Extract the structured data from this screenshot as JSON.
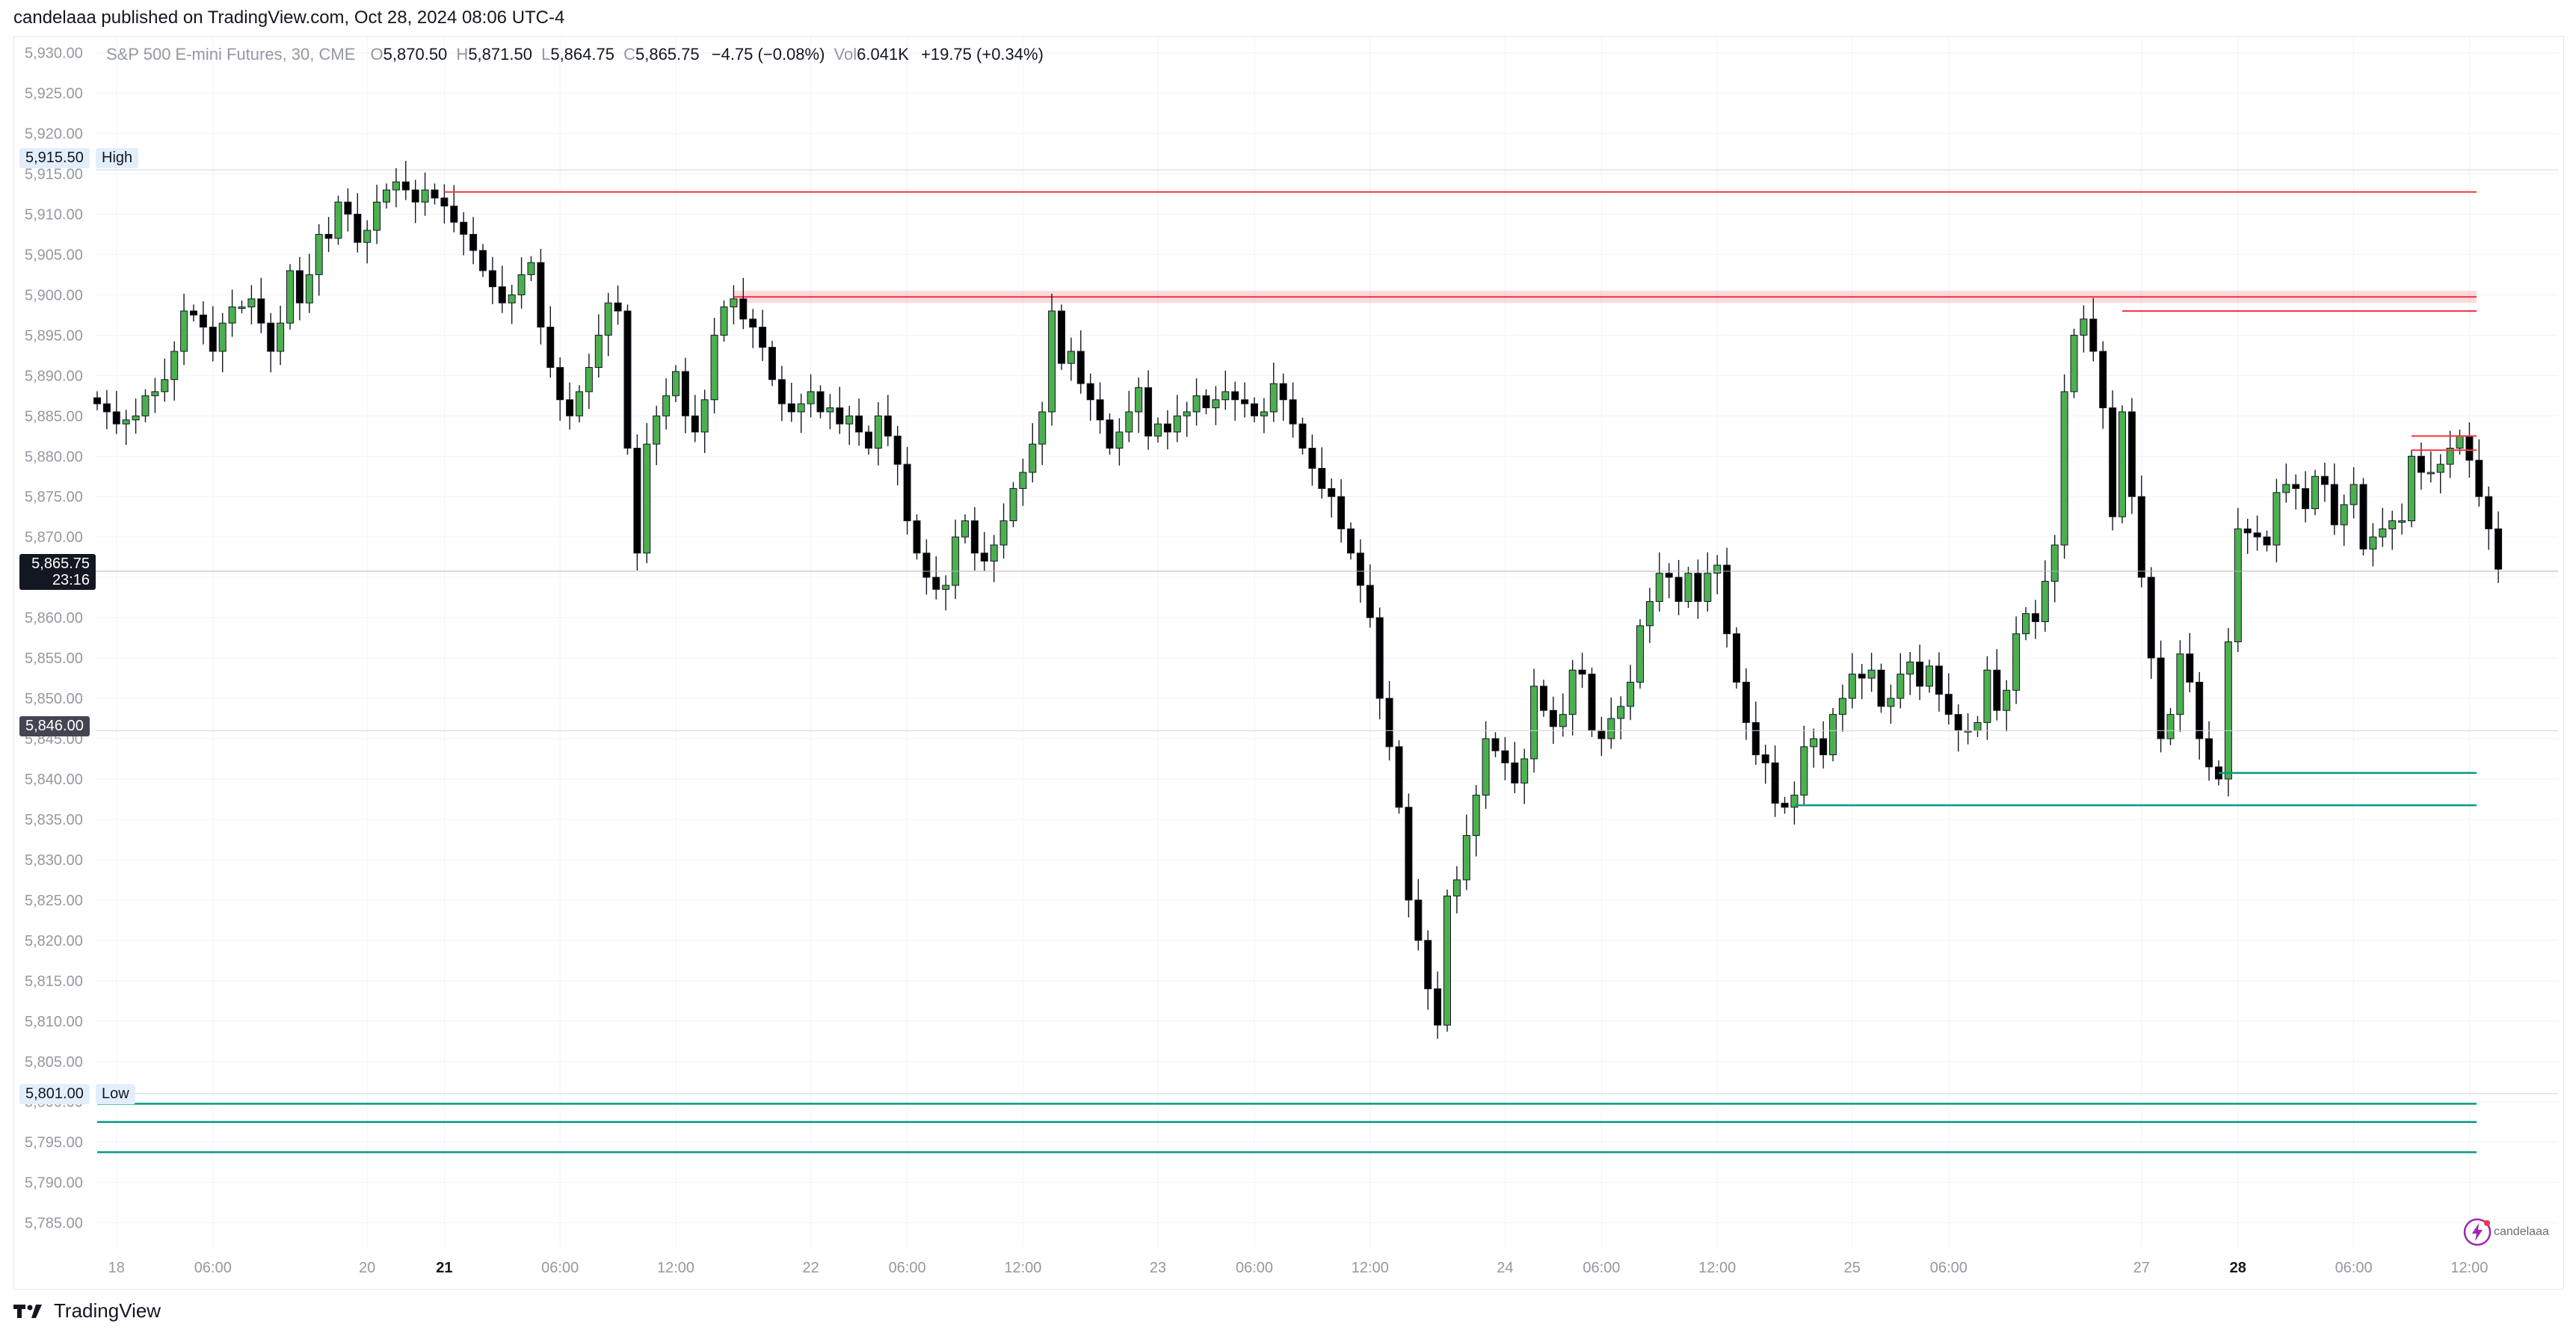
{
  "header": {
    "publish_line": "candelaaa published on TradingView.com, Oct 28, 2024 08:06 UTC-4"
  },
  "legend": {
    "symbol": "S&P 500 E-mini Futures, 30, CME",
    "open_key": "O",
    "open": "5,870.50",
    "high_key": "H",
    "high": "5,871.50",
    "low_key": "L",
    "low": "5,864.75",
    "close_key": "C",
    "close": "5,865.75",
    "change": "−4.75 (−0.08%)",
    "vol_key": "Vol",
    "volume": "6.041K",
    "vol_change": "+19.75 (+0.34%)"
  },
  "tags": {
    "high_price": "5,915.50",
    "high_label": "High",
    "low_price": "5,801.00",
    "low_label": "Low",
    "last_price": "5,865.75",
    "countdown": "23:16",
    "level_price": "5,846.00"
  },
  "footer": {
    "brand": "TradingView"
  },
  "watermark": {
    "text": "candelaaa"
  },
  "colors": {
    "up": "#4caf50",
    "down": "#000000",
    "resistance": "#f23645",
    "support": "#089981",
    "grid": "#f0f3fa"
  },
  "chart_data": {
    "type": "candlestick",
    "timeframe": "30",
    "ylim": [
      5782,
      5932
    ],
    "y_ticks": [
      "5,785.00",
      "5,790.00",
      "5,795.00",
      "5,800.00",
      "5,805.00",
      "5,810.00",
      "5,815.00",
      "5,820.00",
      "5,825.00",
      "5,830.00",
      "5,835.00",
      "5,840.00",
      "5,845.00",
      "5,850.00",
      "5,855.00",
      "5,860.00",
      "5,865.00",
      "5,870.00",
      "5,875.00",
      "5,880.00",
      "5,885.00",
      "5,890.00",
      "5,895.00",
      "5,900.00",
      "5,905.00",
      "5,910.00",
      "5,915.00",
      "5,920.00",
      "5,925.00",
      "5,930.00"
    ],
    "y_tick_values": [
      5785,
      5790,
      5795,
      5800,
      5805,
      5810,
      5815,
      5820,
      5825,
      5830,
      5835,
      5840,
      5845,
      5850,
      5855,
      5860,
      5865,
      5870,
      5875,
      5880,
      5885,
      5890,
      5895,
      5900,
      5905,
      5910,
      5915,
      5920,
      5925,
      5930
    ],
    "x_ticks": [
      {
        "label": "18",
        "bar": 2,
        "bold": false
      },
      {
        "label": "06:00",
        "bar": 12,
        "bold": false
      },
      {
        "label": "20",
        "bar": 28,
        "bold": false
      },
      {
        "label": "21",
        "bar": 36,
        "bold": true
      },
      {
        "label": "06:00",
        "bar": 48,
        "bold": false
      },
      {
        "label": "12:00",
        "bar": 60,
        "bold": false
      },
      {
        "label": "22",
        "bar": 74,
        "bold": false
      },
      {
        "label": "06:00",
        "bar": 84,
        "bold": false
      },
      {
        "label": "12:00",
        "bar": 96,
        "bold": false
      },
      {
        "label": "23",
        "bar": 110,
        "bold": false
      },
      {
        "label": "06:00",
        "bar": 120,
        "bold": false
      },
      {
        "label": "12:00",
        "bar": 132,
        "bold": false
      },
      {
        "label": "24",
        "bar": 146,
        "bold": false
      },
      {
        "label": "06:00",
        "bar": 156,
        "bold": false
      },
      {
        "label": "12:00",
        "bar": 168,
        "bold": false
      },
      {
        "label": "25",
        "bar": 182,
        "bold": false
      },
      {
        "label": "06:00",
        "bar": 192,
        "bold": false
      },
      {
        "label": "27",
        "bar": 212,
        "bold": false
      },
      {
        "label": "28",
        "bar": 222,
        "bold": true
      },
      {
        "label": "06:00",
        "bar": 234,
        "bold": false
      },
      {
        "label": "12:00",
        "bar": 246,
        "bold": false
      }
    ],
    "closes": [
      5886.5,
      5885.5,
      5884.0,
      5884.5,
      5885.0,
      5887.5,
      5888.0,
      5889.5,
      5893.0,
      5898.0,
      5897.5,
      5896.0,
      5893.0,
      5896.5,
      5898.5,
      5898.5,
      5899.5,
      5896.5,
      5893.0,
      5896.5,
      5903.0,
      5899.0,
      5902.5,
      5907.5,
      5907.0,
      5911.5,
      5910.0,
      5906.5,
      5908.0,
      5911.5,
      5913.0,
      5914.0,
      5913.0,
      5911.5,
      5913.0,
      5912.0,
      5911.0,
      5909.0,
      5907.5,
      5905.5,
      5903.0,
      5901.0,
      5899.0,
      5900.0,
      5902.5,
      5904.0,
      5896.0,
      5891.0,
      5887.0,
      5885.0,
      5888.0,
      5891.0,
      5895.0,
      5899.0,
      5898.0,
      5881.0,
      5868.0,
      5881.5,
      5885.0,
      5887.5,
      5890.5,
      5885.0,
      5883.0,
      5887.0,
      5895.0,
      5898.5,
      5899.5,
      5897.0,
      5896.0,
      5893.5,
      5889.5,
      5886.5,
      5885.5,
      5886.5,
      5888.0,
      5885.5,
      5886.0,
      5884.0,
      5885.0,
      5883.0,
      5881.0,
      5885.0,
      5882.5,
      5879.0,
      5872.0,
      5868.0,
      5865.0,
      5863.5,
      5864.0,
      5870.0,
      5872.0,
      5868.0,
      5867.0,
      5869.0,
      5872.0,
      5876.0,
      5878.0,
      5881.5,
      5885.5,
      5898.0,
      5891.5,
      5893.0,
      5889.0,
      5887.0,
      5884.5,
      5881.0,
      5883.0,
      5885.5,
      5888.5,
      5882.5,
      5884.0,
      5883.0,
      5885.0,
      5885.5,
      5887.5,
      5886.0,
      5887.0,
      5888.0,
      5887.0,
      5886.5,
      5885.0,
      5885.5,
      5889.0,
      5887.0,
      5884.0,
      5881.0,
      5878.5,
      5876.0,
      5875.0,
      5871.0,
      5868.0,
      5864.0,
      5860.0,
      5850.0,
      5844.0,
      5836.5,
      5825.0,
      5820.0,
      5814.0,
      5809.5,
      5825.5,
      5827.5,
      5833.0,
      5838.0,
      5845.0,
      5843.5,
      5842.0,
      5839.5,
      5842.5,
      5851.5,
      5848.5,
      5846.5,
      5848.0,
      5853.5,
      5853.0,
      5846.0,
      5845.0,
      5847.5,
      5849.0,
      5852.0,
      5859.0,
      5862.0,
      5865.5,
      5865.0,
      5862.0,
      5865.5,
      5862.0,
      5865.5,
      5866.5,
      5858.0,
      5852.0,
      5847.0,
      5843.0,
      5842.0,
      5837.0,
      5836.5,
      5838.0,
      5844.0,
      5845.0,
      5843.0,
      5848.0,
      5850.0,
      5853.0,
      5852.5,
      5853.5,
      5849.0,
      5850.0,
      5853.0,
      5854.5,
      5851.5,
      5854.0,
      5850.5,
      5848.0,
      5846.0,
      5846.0,
      5847.0,
      5853.5,
      5848.5,
      5851.0,
      5858.0,
      5860.5,
      5859.5,
      5864.5,
      5869.0,
      5888.0,
      5895.0,
      5897.0,
      5893.0,
      5886.0,
      5872.5,
      5885.5,
      5875.0,
      5865.0,
      5855.0,
      5845.0,
      5848.0,
      5855.5,
      5852.0,
      5845.0,
      5841.5,
      5840.0,
      5857.0,
      5871.0,
      5870.5,
      5870.0,
      5869.0,
      5875.5,
      5876.5,
      5876.0,
      5873.5,
      5877.5,
      5876.5,
      5871.5,
      5874.0,
      5876.5,
      5868.5,
      5870.0,
      5871.0,
      5872.0,
      5872.0,
      5880.0,
      5878.0,
      5878.0,
      5879.0,
      5881.0,
      5882.5,
      5879.5,
      5875.0,
      5871.0,
      5866.0
    ],
    "last_close": 5865.75,
    "price_line": 5865.75,
    "level_line": 5846.0,
    "range_high": 5915.5,
    "range_low": 5801.0,
    "resistance_zone": [
      5899.0,
      5900.5
    ],
    "resistance_lines": [
      {
        "price": 5912.75,
        "from_bar": 36
      },
      {
        "price": 5898.0,
        "from_bar": 210
      },
      {
        "price": 5882.5,
        "from_bar": 240
      },
      {
        "price": 5880.75,
        "from_bar": 240
      }
    ],
    "support_lines": [
      {
        "price": 5836.75,
        "from_bar": 176
      },
      {
        "price": 5840.75,
        "from_bar": 220
      },
      {
        "price": 5799.75,
        "from_bar": 0
      },
      {
        "price": 5797.5,
        "from_bar": 0
      },
      {
        "price": 5793.75,
        "from_bar": 0
      }
    ],
    "grid": true
  }
}
